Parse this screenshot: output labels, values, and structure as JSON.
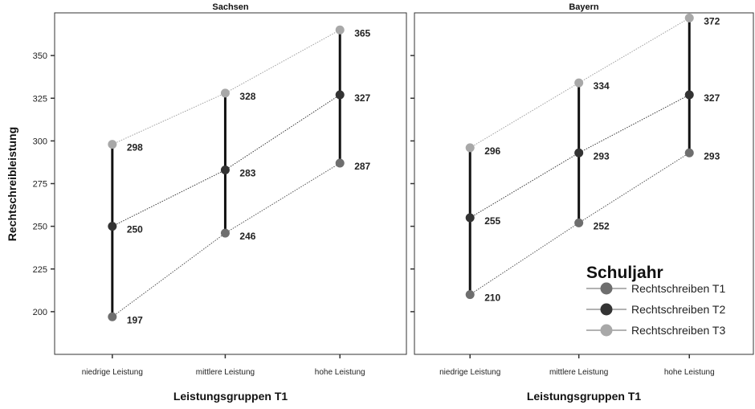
{
  "chart_data": {
    "type": "line",
    "y_axis_title": "Rechtschreibleistung",
    "x_axis_title": "Leistungsgruppen T1",
    "ylim": [
      175,
      375
    ],
    "y_ticks": [
      200,
      225,
      250,
      275,
      300,
      325,
      350
    ],
    "categories": [
      "niedrige Leistung",
      "mittlere Leistung",
      "hohe Leistung"
    ],
    "legend": {
      "title": "Schuljahr",
      "placement": "bottom-right",
      "entries": [
        {
          "name": "Rechtschreiben T1",
          "color": "#6e6e6e"
        },
        {
          "name": "Rechtschreiben T2",
          "color": "#333333"
        },
        {
          "name": "Rechtschreiben T3",
          "color": "#a8a8a8"
        }
      ]
    },
    "panels": [
      {
        "title": "Sachsen",
        "series": [
          {
            "name": "Rechtschreiben T1",
            "values": [
              197,
              246,
              287
            ]
          },
          {
            "name": "Rechtschreiben T2",
            "values": [
              250,
              283,
              327
            ]
          },
          {
            "name": "Rechtschreiben T3",
            "values": [
              298,
              328,
              365
            ]
          }
        ]
      },
      {
        "title": "Bayern",
        "series": [
          {
            "name": "Rechtschreiben T1",
            "values": [
              210,
              252,
              293
            ]
          },
          {
            "name": "Rechtschreiben T2",
            "values": [
              255,
              293,
              327
            ]
          },
          {
            "name": "Rechtschreiben T3",
            "values": [
              296,
              334,
              372
            ]
          }
        ]
      }
    ]
  }
}
